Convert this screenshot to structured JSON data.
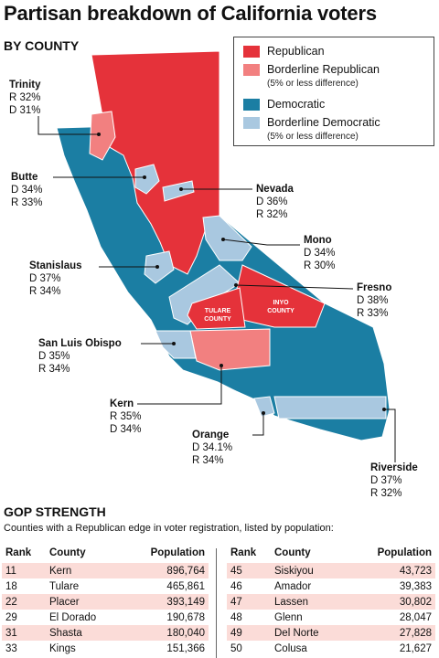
{
  "title": "Partisan breakdown of California voters",
  "subhead": "BY COUNTY",
  "colors": {
    "republican": "#e5323a",
    "borderline_republican": "#f28080",
    "democratic": "#1b7ea3",
    "borderline_democratic": "#a9c8e0"
  },
  "legend": [
    {
      "label": "Republican",
      "note": "",
      "color_key": "republican"
    },
    {
      "label": "Borderline Republican",
      "note": "(5% or less difference)",
      "color_key": "borderline_republican"
    },
    {
      "label": "Democratic",
      "note": "",
      "color_key": "democratic"
    },
    {
      "label": "Borderline Democratic",
      "note": "(5% or less difference)",
      "color_key": "borderline_democratic"
    }
  ],
  "callouts": [
    {
      "name": "Trinity",
      "line1": "R 32%",
      "line2": "D 31%"
    },
    {
      "name": "Butte",
      "line1": "D 34%",
      "line2": "R 33%"
    },
    {
      "name": "Nevada",
      "line1": "D 36%",
      "line2": "R 32%"
    },
    {
      "name": "Mono",
      "line1": "D 34%",
      "line2": "R 30%"
    },
    {
      "name": "Stanislaus",
      "line1": "D 37%",
      "line2": "R 34%"
    },
    {
      "name": "Fresno",
      "line1": "D 38%",
      "line2": "R 33%"
    },
    {
      "name": "San Luis Obispo",
      "line1": "D 35%",
      "line2": "R 34%"
    },
    {
      "name": "Kern",
      "line1": "R 35%",
      "line2": "D 34%"
    },
    {
      "name": "Orange",
      "line1": "D 34.1%",
      "line2": "R 34%"
    },
    {
      "name": "Riverside",
      "line1": "D 37%",
      "line2": "R 32%"
    }
  ],
  "map_labels": {
    "tulare": [
      "TULARE",
      "COUNTY"
    ],
    "inyo": [
      "INYO",
      "COUNTY"
    ]
  },
  "gop": {
    "heading": "GOP STRENGTH",
    "subtitle": "Counties with a Republican edge in voter registration, listed by population:",
    "headers": [
      "Rank",
      "County",
      "Population"
    ],
    "left_rows": [
      [
        "11",
        "Kern",
        "896,764"
      ],
      [
        "18",
        "Tulare",
        "465,861"
      ],
      [
        "22",
        "Placer",
        "393,149"
      ],
      [
        "29",
        "El Dorado",
        "190,678"
      ],
      [
        "31",
        "Shasta",
        "180,040"
      ],
      [
        "33",
        "Kings",
        "151,366"
      ]
    ],
    "right_rows": [
      [
        "45",
        "Siskiyou",
        "43,723"
      ],
      [
        "46",
        "Amador",
        "39,383"
      ],
      [
        "47",
        "Lassen",
        "30,802"
      ],
      [
        "48",
        "Glenn",
        "28,047"
      ],
      [
        "49",
        "Del Norte",
        "27,828"
      ],
      [
        "50",
        "Colusa",
        "21,627"
      ]
    ]
  }
}
